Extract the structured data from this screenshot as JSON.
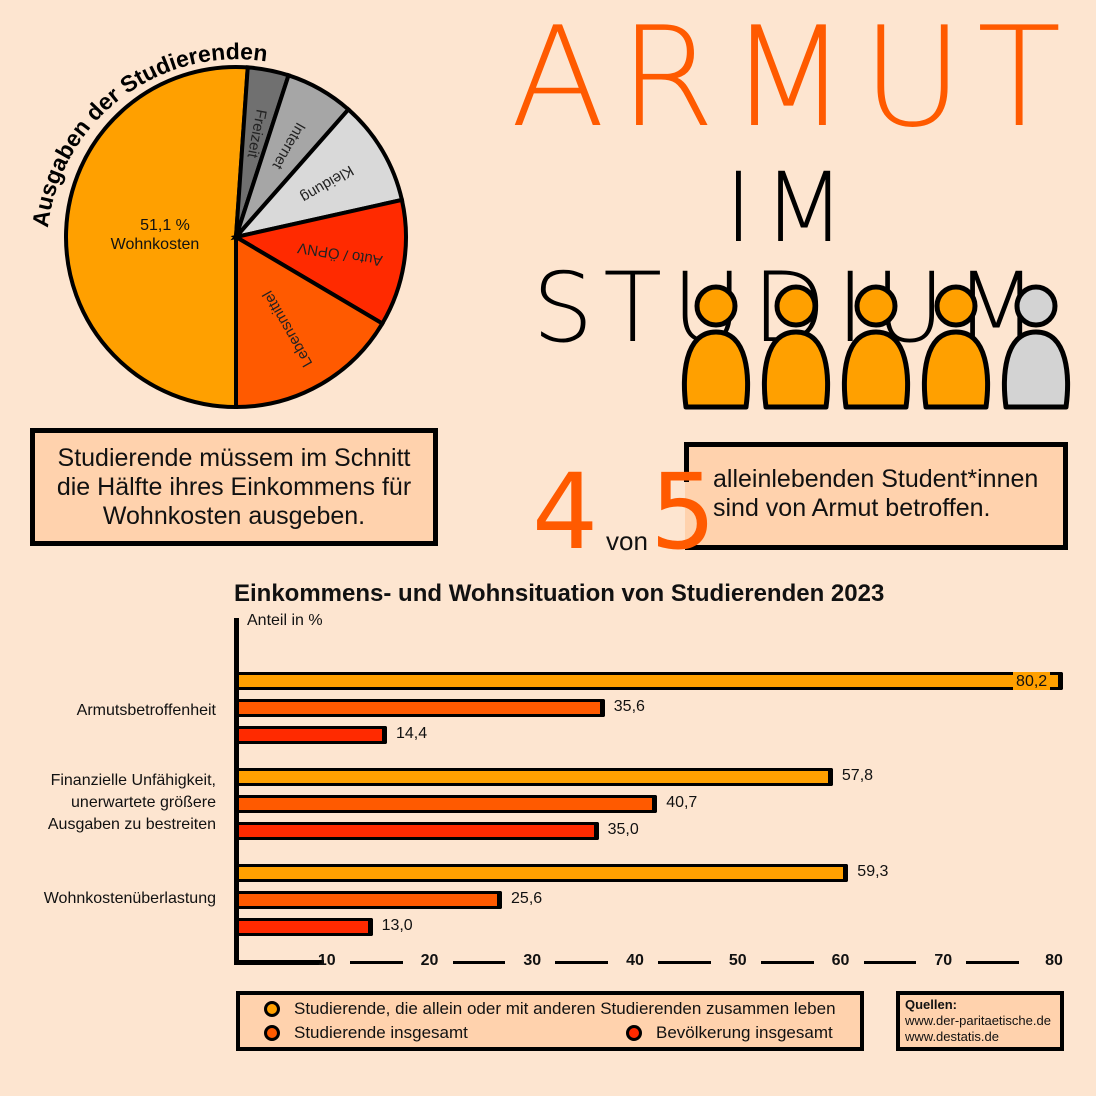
{
  "header": {
    "title_line1": "ARMUT",
    "title_line2": "IM STUDIUM"
  },
  "pie": {
    "title": "Ausgaben der Studierenden",
    "center_value": "51,1 %",
    "center_label": "Wohnkosten"
  },
  "people_icons": {
    "total": 5,
    "highlighted": 4,
    "highlight_color": "#ffa000",
    "other_color": "#d3d3d3"
  },
  "info_box": {
    "text": "Studierende müssem im Schnitt die Hälfte ihres Einkommens für Wohnkosten ausgeben."
  },
  "stat": {
    "num1": "4",
    "von": "von",
    "num2": "5",
    "line1": "alleinlebenden Student*innen",
    "line2": "sind von Armut betroffen."
  },
  "legend": {
    "items": [
      {
        "label": "Studierende, die allein oder mit anderen Studierenden zusammen leben",
        "color": "#ffa000"
      },
      {
        "label": "Studierende insgesamt",
        "color": "#ff5a00"
      },
      {
        "label": "Bevölkerung insgesamt",
        "color": "#ff2a00"
      }
    ]
  },
  "sources": {
    "title": "Quellen:",
    "lines": [
      "www.der-paritaetische.de",
      "www.destatis.de"
    ]
  },
  "chart_data": [
    {
      "type": "pie",
      "title": "Ausgaben der Studierenden",
      "categories": [
        "Wohnkosten",
        "Lebensmittel",
        "Auto / ÖPNV",
        "Kleidung",
        "Internet",
        "Freizeit"
      ],
      "values": [
        51.1,
        16.5,
        12.0,
        10.0,
        6.5,
        3.9
      ],
      "colors": [
        "#ffa000",
        "#ff5a00",
        "#ff2a00",
        "#d9d9d9",
        "#a6a6a6",
        "#707070"
      ],
      "labels": [
        "51,1 %\nWohnkosten",
        "Lebensmittel",
        "Auto / ÖPNV",
        "Kleidung",
        "Internet",
        "Freizeit"
      ]
    },
    {
      "type": "bar",
      "orientation": "horizontal",
      "title": "Einkommens- und Wohnsituation von Studierenden 2023",
      "xlabel": "Anteil in %",
      "ylabel": "",
      "categories": [
        "Armutsbetroffenheit",
        "Finanzielle Unfähigkeit, unerwartete größere Ausgaben zu bestreiten",
        "Wohnkostenüberlastung"
      ],
      "category_lines": [
        [
          "Armutsbetroffenheit"
        ],
        [
          "Finanzielle Unfähigkeit,",
          "unerwartete größere",
          "Ausgaben zu bestreiten"
        ],
        [
          "Wohnkostenüberlastung"
        ]
      ],
      "series": [
        {
          "name": "Studierende, die allein oder mit anderen Studierenden zusammen leben",
          "values": [
            80.2,
            57.8,
            59.3
          ],
          "labels": [
            "80,2",
            "57,8",
            "59,3"
          ],
          "color": "#ffa000"
        },
        {
          "name": "Studierende insgesamt",
          "values": [
            35.6,
            40.7,
            25.6
          ],
          "labels": [
            "35,6",
            "40,7",
            "25,6"
          ],
          "color": "#ff5a00"
        },
        {
          "name": "Bevölkerung insgesamt",
          "values": [
            14.4,
            35.0,
            13.0
          ],
          "labels": [
            "14,4",
            "35,0",
            "13,0"
          ],
          "color": "#ff2a00"
        }
      ],
      "xticks": [
        "10",
        "20",
        "30",
        "40",
        "50",
        "60",
        "70",
        "80"
      ],
      "xlim": [
        0,
        80
      ],
      "grid": false,
      "legend_position": "bottom"
    }
  ]
}
